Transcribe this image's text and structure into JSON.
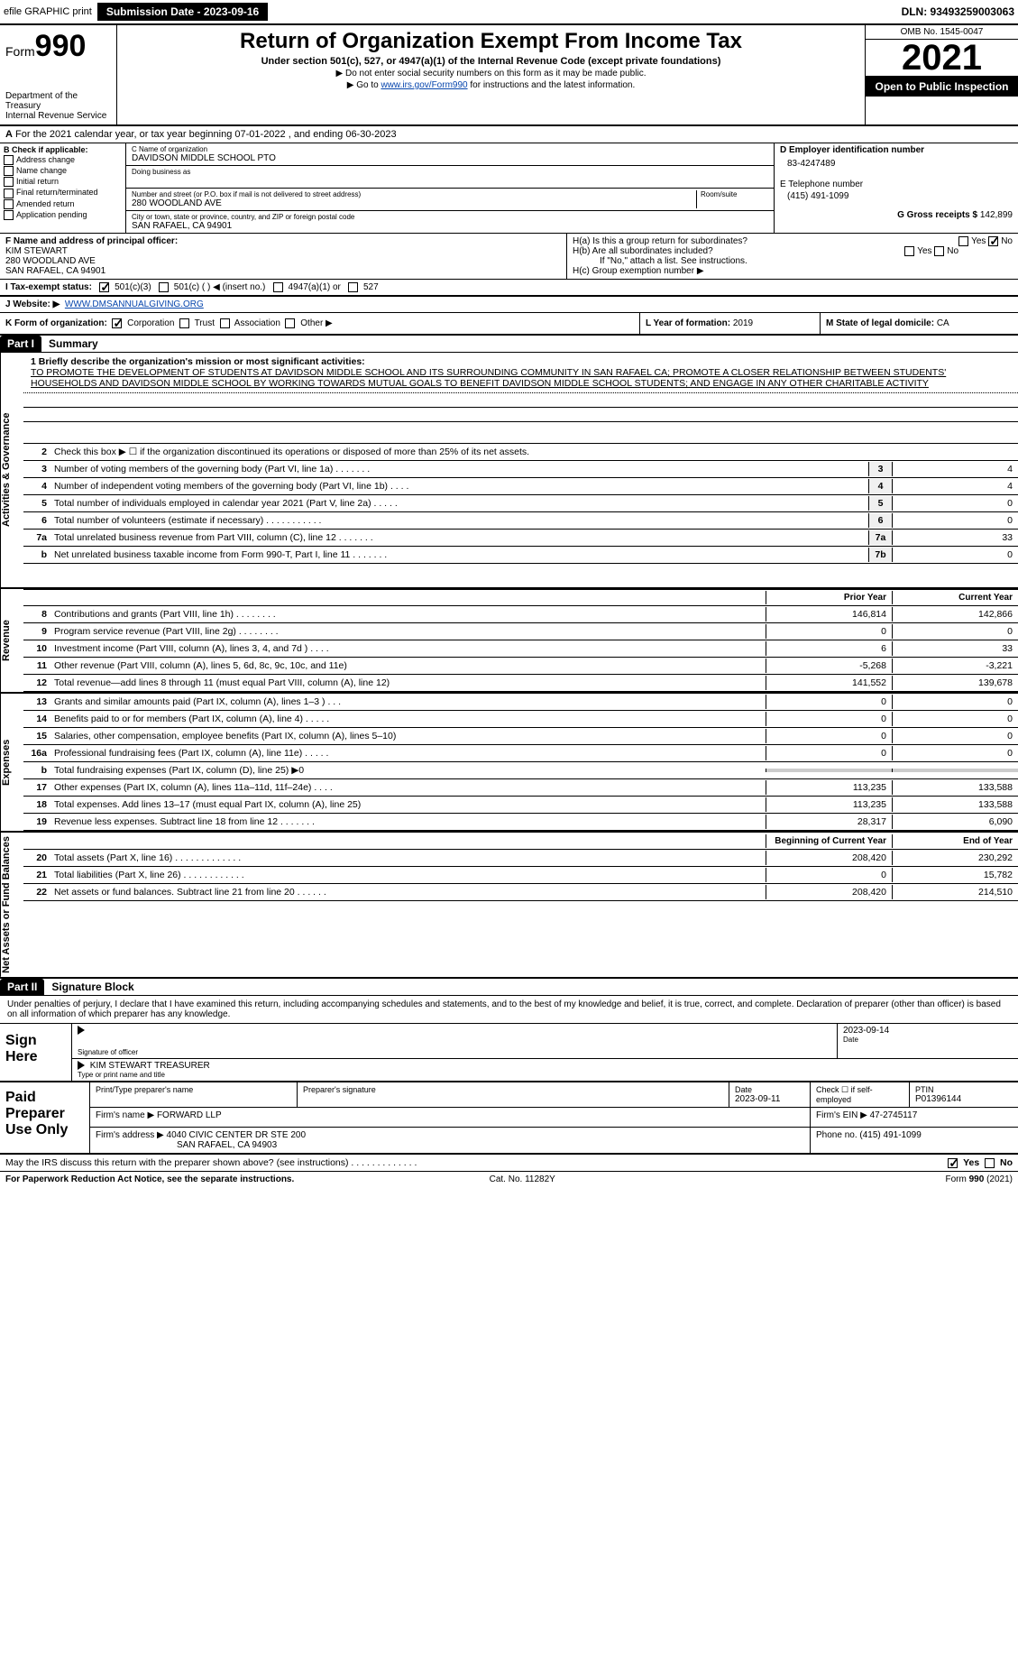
{
  "topbar": {
    "efile": "efile GRAPHIC print",
    "submission_label": "Submission Date - 2023-09-16",
    "dln": "DLN: 93493259003063"
  },
  "header": {
    "form_prefix": "Form",
    "form_number": "990",
    "dept": "Department of the Treasury",
    "irs": "Internal Revenue Service",
    "title": "Return of Organization Exempt From Income Tax",
    "subtitle": "Under section 501(c), 527, or 4947(a)(1) of the Internal Revenue Code (except private foundations)",
    "note1": "▶ Do not enter social security numbers on this form as it may be made public.",
    "note2_pre": "▶ Go to ",
    "note2_link": "www.irs.gov/Form990",
    "note2_post": " for instructions and the latest information.",
    "omb": "OMB No. 1545-0047",
    "year": "2021",
    "open": "Open to Public Inspection"
  },
  "row_a": "For the 2021 calendar year, or tax year beginning 07-01-2022    , and ending 06-30-2023",
  "section_b": {
    "label": "B Check if applicable:",
    "items": [
      "Address change",
      "Name change",
      "Initial return",
      "Final return/terminated",
      "Amended return",
      "Application pending"
    ]
  },
  "section_c": {
    "name_label": "C Name of organization",
    "name": "DAVIDSON MIDDLE SCHOOL PTO",
    "dba_label": "Doing business as",
    "street_label": "Number and street (or P.O. box if mail is not delivered to street address)",
    "room_label": "Room/suite",
    "street": "280 WOODLAND AVE",
    "city_label": "City or town, state or province, country, and ZIP or foreign postal code",
    "city": "SAN RAFAEL, CA  94901"
  },
  "section_d": {
    "ein_label": "D Employer identification number",
    "ein": "83-4247489",
    "phone_label": "E Telephone number",
    "phone": "(415) 491-1099",
    "gross_label": "G Gross receipts $",
    "gross": "142,899"
  },
  "section_f": {
    "label": "F  Name and address of principal officer:",
    "name": "KIM STEWART",
    "street": "280 WOODLAND AVE",
    "city": "SAN RAFAEL, CA  94901"
  },
  "section_h": {
    "ha": "H(a)  Is this a group return for subordinates?",
    "ha_yes": "Yes",
    "ha_no": "No",
    "hb": "H(b)  Are all subordinates included?",
    "hb_yes": "Yes",
    "hb_no": "No",
    "hb_note": "If \"No,\" attach a list. See instructions.",
    "hc": "H(c)  Group exemption number ▶"
  },
  "row_i": {
    "label": "I   Tax-exempt status:",
    "opt1": "501(c)(3)",
    "opt2": "501(c) (   ) ◀ (insert no.)",
    "opt3": "4947(a)(1) or",
    "opt4": "527"
  },
  "row_j": {
    "label": "J   Website: ▶",
    "value": "WWW.DMSANNUALGIVING.ORG"
  },
  "row_k": {
    "label": "K Form of organization:",
    "opts": [
      "Corporation",
      "Trust",
      "Association",
      "Other ▶"
    ]
  },
  "row_l": {
    "label": "L Year of formation:",
    "value": "2019"
  },
  "row_m": {
    "label": "M State of legal domicile:",
    "value": "CA"
  },
  "part1": {
    "label": "Part I",
    "title": "Summary"
  },
  "vtabs": {
    "gov": "Activities & Governance",
    "rev": "Revenue",
    "exp": "Expenses",
    "net": "Net Assets or Fund Balances"
  },
  "mission": {
    "label": "1  Briefly describe the organization's mission or most significant activities:",
    "text": "TO PROMOTE THE DEVELOPMENT OF STUDENTS AT DAVIDSON MIDDLE SCHOOL AND ITS SURROUNDING COMMUNITY IN SAN RAFAEL CA; PROMOTE A CLOSER RELATIONSHIP BETWEEN STUDENTS' HOUSEHOLDS AND DAVIDSON MIDDLE SCHOOL BY WORKING TOWARDS MUTUAL GOALS TO BENEFIT DAVIDSON MIDDLE SCHOOL STUDENTS; AND ENGAGE IN ANY OTHER CHARITABLE ACTIVITY"
  },
  "lines_gov": [
    {
      "n": "2",
      "d": "Check this box ▶ ☐  if the organization discontinued its operations or disposed of more than 25% of its net assets.",
      "box": "",
      "v": ""
    },
    {
      "n": "3",
      "d": "Number of voting members of the governing body (Part VI, line 1a)  .    .    .    .    .    .    .",
      "box": "3",
      "v": "4"
    },
    {
      "n": "4",
      "d": "Number of independent voting members of the governing body (Part VI, line 1b)   .    .    .    .",
      "box": "4",
      "v": "4"
    },
    {
      "n": "5",
      "d": "Total number of individuals employed in calendar year 2021 (Part V, line 2a)   .    .    .    .    .",
      "box": "5",
      "v": "0"
    },
    {
      "n": "6",
      "d": "Total number of volunteers (estimate if necessary)    .    .    .    .    .    .    .    .    .    .    .",
      "box": "6",
      "v": "0"
    },
    {
      "n": "7a",
      "d": "Total unrelated business revenue from Part VIII, column (C), line 12   .    .    .    .    .    .    .",
      "box": "7a",
      "v": "33"
    },
    {
      "n": "b",
      "d": "Net unrelated business taxable income from Form 990-T, Part I, line 11   .    .    .    .    .    .    .",
      "box": "7b",
      "v": "0"
    }
  ],
  "col_headers": {
    "prior": "Prior Year",
    "current": "Current Year",
    "begin": "Beginning of Current Year",
    "end": "End of Year"
  },
  "lines_rev": [
    {
      "n": "8",
      "d": "Contributions and grants (Part VIII, line 1h)   .    .    .    .    .    .    .    .",
      "p": "146,814",
      "c": "142,866"
    },
    {
      "n": "9",
      "d": "Program service revenue (Part VIII, line 2g)   .    .    .    .    .    .    .    .",
      "p": "0",
      "c": "0"
    },
    {
      "n": "10",
      "d": "Investment income (Part VIII, column (A), lines 3, 4, and 7d )   .    .    .    .",
      "p": "6",
      "c": "33"
    },
    {
      "n": "11",
      "d": "Other revenue (Part VIII, column (A), lines 5, 6d, 8c, 9c, 10c, and 11e)",
      "p": "-5,268",
      "c": "-3,221"
    },
    {
      "n": "12",
      "d": "Total revenue—add lines 8 through 11 (must equal Part VIII, column (A), line 12)",
      "p": "141,552",
      "c": "139,678"
    }
  ],
  "lines_exp": [
    {
      "n": "13",
      "d": "Grants and similar amounts paid (Part IX, column (A), lines 1–3 )   .    .    .",
      "p": "0",
      "c": "0"
    },
    {
      "n": "14",
      "d": "Benefits paid to or for members (Part IX, column (A), line 4)   .    .    .    .    .",
      "p": "0",
      "c": "0"
    },
    {
      "n": "15",
      "d": "Salaries, other compensation, employee benefits (Part IX, column (A), lines 5–10)",
      "p": "0",
      "c": "0"
    },
    {
      "n": "16a",
      "d": "Professional fundraising fees (Part IX, column (A), line 11e)   .    .    .    .    .",
      "p": "0",
      "c": "0"
    },
    {
      "n": "b",
      "d": "Total fundraising expenses (Part IX, column (D), line 25) ▶0",
      "p": "",
      "c": "",
      "shaded": true
    },
    {
      "n": "17",
      "d": "Other expenses (Part IX, column (A), lines 11a–11d, 11f–24e)   .    .    .    .",
      "p": "113,235",
      "c": "133,588"
    },
    {
      "n": "18",
      "d": "Total expenses. Add lines 13–17 (must equal Part IX, column (A), line 25)",
      "p": "113,235",
      "c": "133,588"
    },
    {
      "n": "19",
      "d": "Revenue less expenses. Subtract line 18 from line 12   .    .    .    .    .    .    .",
      "p": "28,317",
      "c": "6,090"
    }
  ],
  "lines_net": [
    {
      "n": "20",
      "d": "Total assets (Part X, line 16)   .    .    .    .    .    .    .    .    .    .    .    .    .",
      "p": "208,420",
      "c": "230,292"
    },
    {
      "n": "21",
      "d": "Total liabilities (Part X, line 26)   .    .    .    .    .    .    .    .    .    .    .    .",
      "p": "0",
      "c": "15,782"
    },
    {
      "n": "22",
      "d": "Net assets or fund balances. Subtract line 21 from line 20   .    .    .    .    .    .",
      "p": "208,420",
      "c": "214,510"
    }
  ],
  "part2": {
    "label": "Part II",
    "title": "Signature Block"
  },
  "sig": {
    "intro": "Under penalties of perjury, I declare that I have examined this return, including accompanying schedules and statements, and to the best of my knowledge and belief, it is true, correct, and complete. Declaration of preparer (other than officer) is based on all information of which preparer has any knowledge.",
    "sign_here": "Sign Here",
    "sig_officer": "Signature of officer",
    "date_label": "Date",
    "date": "2023-09-14",
    "name_title": "KIM STEWART  TREASURER",
    "type_label": "Type or print name and title"
  },
  "paid": {
    "label": "Paid Preparer Use Only",
    "h_name": "Print/Type preparer's name",
    "h_sig": "Preparer's signature",
    "h_date": "Date",
    "date": "2023-09-11",
    "h_check": "Check ☐ if self-employed",
    "h_ptin": "PTIN",
    "ptin": "P01396144",
    "firm_name_label": "Firm's name    ▶",
    "firm_name": "FORWARD LLP",
    "firm_ein_label": "Firm's EIN ▶",
    "firm_ein": "47-2745117",
    "firm_addr_label": "Firm's address ▶",
    "firm_addr1": "4040 CIVIC CENTER DR STE 200",
    "firm_addr2": "SAN RAFAEL, CA  94903",
    "phone_label": "Phone no.",
    "phone": "(415) 491-1099"
  },
  "may_irs": {
    "q": "May the IRS discuss this return with the preparer shown above? (see instructions)   .    .    .    .    .    .    .    .    .    .    .    .    .",
    "yes": "Yes",
    "no": "No"
  },
  "footer": {
    "left": "For Paperwork Reduction Act Notice, see the separate instructions.",
    "mid": "Cat. No. 11282Y",
    "right_form": "Form",
    "right_num": "990",
    "right_year": "(2021)"
  }
}
